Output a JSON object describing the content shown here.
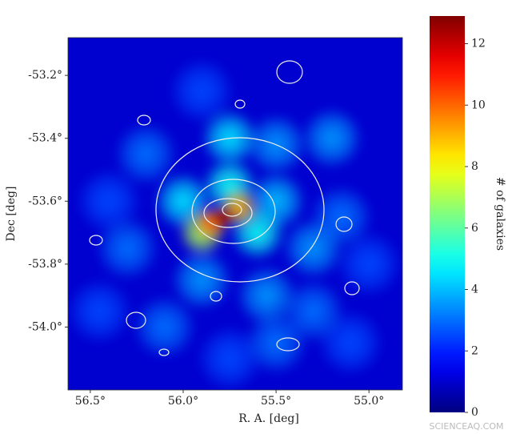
{
  "chart_data": {
    "type": "heatmap",
    "colormap": "jet",
    "xlabel": "R. A. [deg]",
    "ylabel": "Dec [deg]",
    "colorbar_label": "# of galaxies",
    "xlim": [
      56.62,
      54.82
    ],
    "ylim": [
      -54.2,
      -53.08
    ],
    "clim": [
      0,
      12.9
    ],
    "xticks": [
      {
        "value": 56.5,
        "label": "56.5°"
      },
      {
        "value": 56.0,
        "label": "56.0°"
      },
      {
        "value": 55.5,
        "label": "55.5°"
      },
      {
        "value": 55.0,
        "label": "55.0°"
      }
    ],
    "yticks": [
      {
        "value": -53.2,
        "label": "-53.2°"
      },
      {
        "value": -53.4,
        "label": "-53.4°"
      },
      {
        "value": -53.6,
        "label": "-53.6°"
      },
      {
        "value": -53.8,
        "label": "-53.8°"
      },
      {
        "value": -54.0,
        "label": "-54.0°"
      }
    ],
    "cticks": [
      0,
      2,
      4,
      6,
      8,
      10,
      12
    ],
    "background": 1,
    "x": [
      56.4,
      56.45,
      55.75,
      55.0,
      55.9,
      55.1,
      56.2,
      56.3,
      55.3,
      56.1,
      55.5,
      55.15,
      55.5,
      55.2,
      55.3,
      55.9,
      55.55,
      56.0,
      55.5,
      55.75,
      55.6,
      55.75,
      55.9,
      55.7,
      55.85,
      55.78
    ],
    "y": [
      -53.6,
      -53.95,
      -54.1,
      -53.8,
      -53.25,
      -54.05,
      -53.45,
      -53.75,
      -53.95,
      -54.0,
      -54.05,
      -53.65,
      -53.42,
      -53.4,
      -53.75,
      -53.85,
      -53.9,
      -53.6,
      -53.6,
      -53.4,
      -53.7,
      -53.55,
      -53.7,
      -53.62,
      -53.67,
      -53.65
    ],
    "values": [
      2.5,
      2.5,
      2.5,
      2.5,
      2.5,
      2.5,
      3,
      3,
      3,
      3,
      3,
      3,
      3.5,
      3.5,
      3.5,
      3.5,
      3.5,
      4.5,
      4,
      4.5,
      5,
      5,
      7,
      9,
      10,
      12.5
    ],
    "watermark": "SCIENCEAQ.COM"
  }
}
